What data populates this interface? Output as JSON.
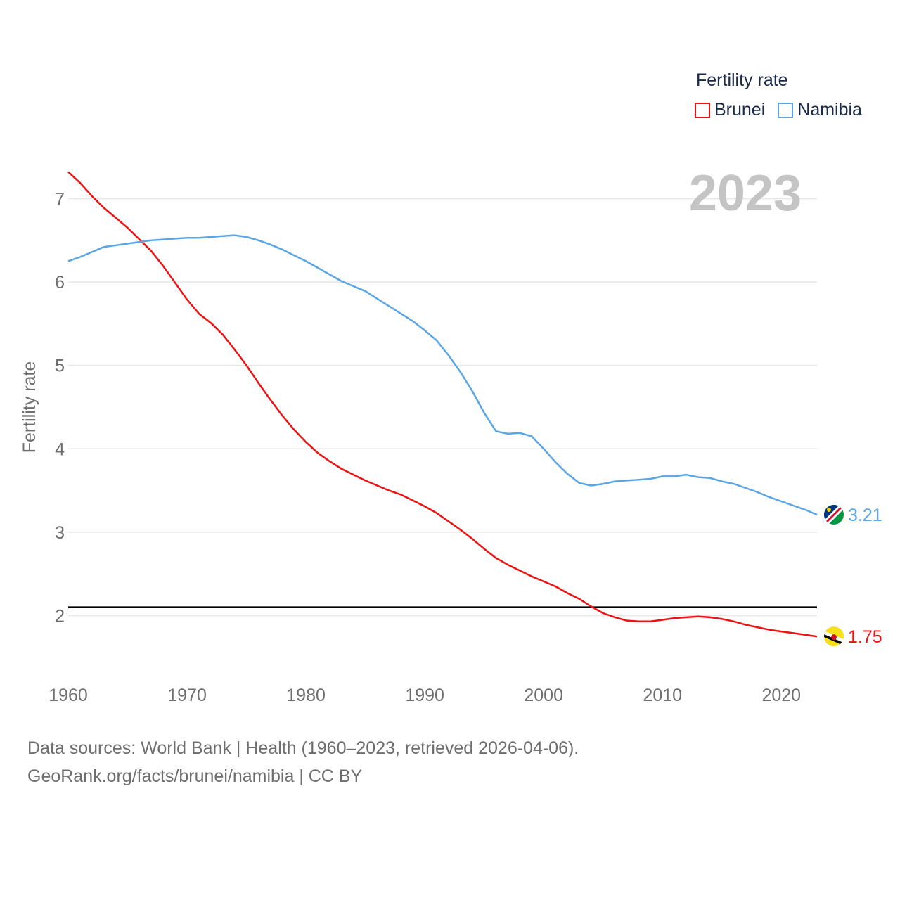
{
  "legend": {
    "title": "Fertility rate",
    "items": [
      {
        "name": "Brunei",
        "color": "#ee1111"
      },
      {
        "name": "Namibia",
        "color": "#5aa5e6"
      }
    ]
  },
  "footer": {
    "line1": "Data sources: World Bank | Health (1960–2023, retrieved 2026-04-06).",
    "line2": "GeoRank.org/facts/brunei/namibia | CC BY"
  },
  "chart_data": {
    "type": "line",
    "title": "Fertility rate",
    "year_label": "2023",
    "ylabel": "Fertility rate",
    "xlabel": "",
    "xlim": [
      1960,
      2023
    ],
    "ylim": [
      1.33,
      7.4
    ],
    "x_ticks": [
      1960,
      1970,
      1980,
      1990,
      2000,
      2010,
      2020
    ],
    "y_ticks": [
      2,
      3,
      4,
      5,
      6,
      7
    ],
    "reference_line": {
      "y": 2.1,
      "color": "#000000"
    },
    "series": [
      {
        "name": "Brunei",
        "color": "#ee1111",
        "end_label": "1.75",
        "flag": "brunei-flag-icon",
        "x": [
          1960,
          1961,
          1962,
          1963,
          1964,
          1965,
          1966,
          1967,
          1968,
          1969,
          1970,
          1971,
          1972,
          1973,
          1974,
          1975,
          1976,
          1977,
          1978,
          1979,
          1980,
          1981,
          1982,
          1983,
          1984,
          1985,
          1986,
          1987,
          1988,
          1989,
          1990,
          1991,
          1992,
          1993,
          1994,
          1995,
          1996,
          1997,
          1998,
          1999,
          2000,
          2001,
          2002,
          2003,
          2004,
          2005,
          2006,
          2007,
          2008,
          2009,
          2010,
          2011,
          2012,
          2013,
          2014,
          2015,
          2016,
          2017,
          2018,
          2019,
          2020,
          2021,
          2022,
          2023
        ],
        "values": [
          7.32,
          7.19,
          7.03,
          6.89,
          6.77,
          6.65,
          6.51,
          6.37,
          6.19,
          5.99,
          5.79,
          5.62,
          5.51,
          5.37,
          5.19,
          5.0,
          4.79,
          4.59,
          4.4,
          4.23,
          4.08,
          3.95,
          3.85,
          3.76,
          3.69,
          3.62,
          3.56,
          3.5,
          3.45,
          3.38,
          3.31,
          3.23,
          3.13,
          3.03,
          2.92,
          2.8,
          2.69,
          2.61,
          2.54,
          2.47,
          2.41,
          2.35,
          2.27,
          2.2,
          2.11,
          2.03,
          1.98,
          1.94,
          1.93,
          1.93,
          1.95,
          1.97,
          1.98,
          1.99,
          1.98,
          1.96,
          1.93,
          1.89,
          1.86,
          1.83,
          1.81,
          1.79,
          1.77,
          1.75
        ]
      },
      {
        "name": "Namibia",
        "color": "#5aa5e6",
        "end_label": "3.21",
        "flag": "namibia-flag-icon",
        "x": [
          1960,
          1961,
          1962,
          1963,
          1964,
          1965,
          1966,
          1967,
          1968,
          1969,
          1970,
          1971,
          1972,
          1973,
          1974,
          1975,
          1976,
          1977,
          1978,
          1979,
          1980,
          1981,
          1982,
          1983,
          1984,
          1985,
          1986,
          1987,
          1988,
          1989,
          1990,
          1991,
          1992,
          1993,
          1994,
          1995,
          1996,
          1997,
          1998,
          1999,
          2000,
          2001,
          2002,
          2003,
          2004,
          2005,
          2006,
          2007,
          2008,
          2009,
          2010,
          2011,
          2012,
          2013,
          2014,
          2015,
          2016,
          2017,
          2018,
          2019,
          2020,
          2021,
          2022,
          2023
        ],
        "values": [
          6.25,
          6.3,
          6.36,
          6.42,
          6.44,
          6.46,
          6.48,
          6.5,
          6.51,
          6.52,
          6.53,
          6.53,
          6.54,
          6.55,
          6.56,
          6.54,
          6.5,
          6.45,
          6.39,
          6.32,
          6.25,
          6.17,
          6.09,
          6.01,
          5.95,
          5.89,
          5.8,
          5.71,
          5.62,
          5.53,
          5.42,
          5.3,
          5.12,
          4.92,
          4.69,
          4.43,
          4.21,
          4.18,
          4.19,
          4.15,
          4.0,
          3.84,
          3.7,
          3.59,
          3.56,
          3.58,
          3.61,
          3.62,
          3.63,
          3.64,
          3.67,
          3.67,
          3.69,
          3.66,
          3.65,
          3.61,
          3.58,
          3.53,
          3.48,
          3.42,
          3.37,
          3.32,
          3.27,
          3.21
        ]
      }
    ]
  }
}
